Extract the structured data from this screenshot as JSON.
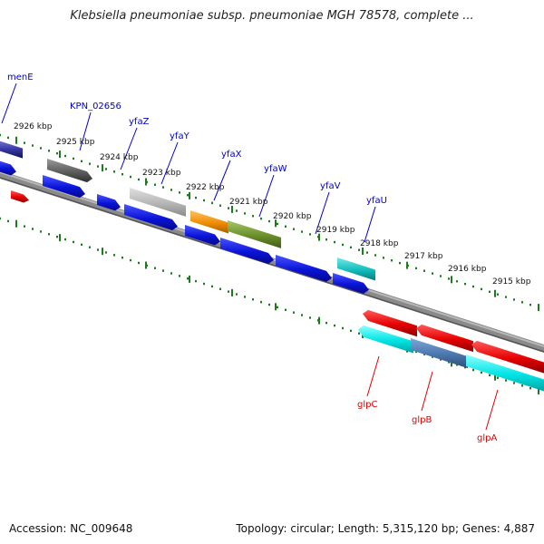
{
  "title": "Klebsiella pneumoniae subsp. pneumoniae MGH 78578, complete ...",
  "footer": {
    "accession": "Accession: NC_009648",
    "summary": "Topology: circular; Length: 5,315,120 bp; Genes: 4,887"
  },
  "colors": {
    "backbone": "#7a7a7a",
    "tick": "#1f7a1f",
    "forward_label": "#0000cc",
    "reverse_label": "#dd0000",
    "blue_gene": "#0a1adf",
    "red_gene": "#e60000",
    "cyan_gene": "#00dede"
  },
  "scale": {
    "unit": "kbp",
    "labels": [
      "2926 kbp",
      "2925 kbp",
      "2924 kbp",
      "2923 kbp",
      "2922 kbp",
      "2921 kbp",
      "2920 kbp",
      "2919 kbp",
      "2918 kbp",
      "2917 kbp",
      "2916 kbp",
      "2915 kbp"
    ]
  },
  "forward_gene_labels": [
    "menE",
    "KPN_02656",
    "yfaZ",
    "yfaY",
    "yfaX",
    "yfaW",
    "yfaV",
    "yfaU"
  ],
  "reverse_gene_labels": [
    "glpC",
    "glpB",
    "glpA"
  ]
}
